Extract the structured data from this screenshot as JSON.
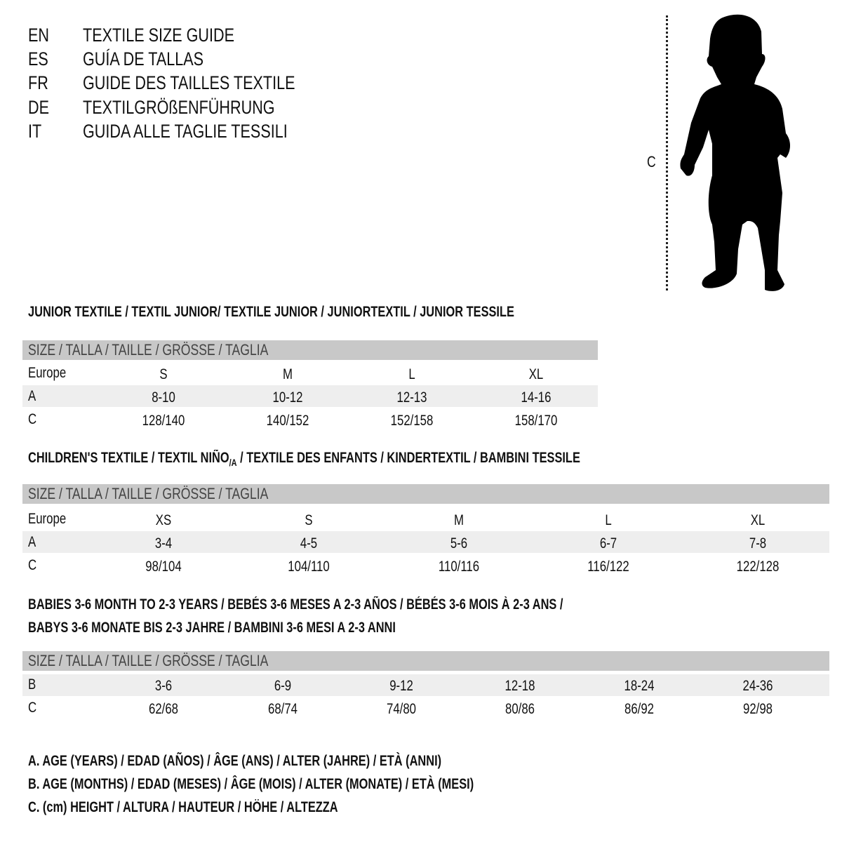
{
  "languages": [
    {
      "code": "EN",
      "title": "TEXTILE SIZE GUIDE"
    },
    {
      "code": "ES",
      "title": "GUÍA DE TALLAS"
    },
    {
      "code": "FR",
      "title": "GUIDE DES TAILLES TEXTILE"
    },
    {
      "code": "DE",
      "title": "TEXTILGRÖßENFÜHRUNG"
    },
    {
      "code": "IT",
      "title": "GUIDA ALLE TAGLIE TESSILI"
    }
  ],
  "figure": {
    "measure_label": "C",
    "icon": "child-silhouette-icon"
  },
  "junior": {
    "heading": "JUNIOR TEXTILE / TEXTIL JUNIOR/ TEXTILE JUNIOR / JUNIORTEXTIL / JUNIOR TESSILE",
    "header": "SIZE / TALLA / TAILLE / GRÖSSE / TAGLIA",
    "rows": [
      {
        "label": "Europe",
        "values": [
          "S",
          "M",
          "L",
          "XL"
        ]
      },
      {
        "label": "A",
        "values": [
          "8-10",
          "10-12",
          "12-13",
          "14-16"
        ]
      },
      {
        "label": "C",
        "values": [
          "128/140",
          "140/152",
          "152/158",
          "158/170"
        ]
      }
    ]
  },
  "children": {
    "heading": "CHILDREN'S TEXTILE / TEXTIL NIÑO",
    "heading_sub": "/A",
    "heading_rest": " / TEXTILE DES ENFANTS / KINDERTEXTIL / BAMBINI TESSILE",
    "header": "SIZE / TALLA / TAILLE / GRÖSSE / TAGLIA",
    "rows": [
      {
        "label": "Europe",
        "values": [
          "XS",
          "S",
          "M",
          "L",
          "XL"
        ]
      },
      {
        "label": "A",
        "values": [
          "3-4",
          "4-5",
          "5-6",
          "6-7",
          "7-8"
        ]
      },
      {
        "label": "C",
        "values": [
          "98/104",
          "104/110",
          "110/116",
          "116/122",
          "122/128"
        ]
      }
    ]
  },
  "babies": {
    "heading_line1": "BABIES 3-6 MONTH TO 2-3 YEARS / BEBÉS 3-6 MESES A 2-3 AÑOS / BÉBÉS 3-6 MOIS À 2-3 ANS /",
    "heading_line2": "BABYS 3-6 MONATE BIS 2-3 JAHRE / BAMBINI 3-6 MESI A 2-3 ANNI",
    "header": "SIZE / TALLA / TAILLE / GRÖSSE / TAGLIA",
    "rows": [
      {
        "label": "B",
        "values": [
          "3-6",
          "6-9",
          "9-12",
          "12-18",
          "18-24",
          "24-36"
        ]
      },
      {
        "label": "C",
        "values": [
          "62/68",
          "68/74",
          "74/80",
          "80/86",
          "86/92",
          "92/98"
        ]
      }
    ]
  },
  "legend": [
    "A. AGE (YEARS) / EDAD (AÑOS) / ÂGE (ANS) / ALTER (JAHRE) / ETÀ (ANNI)",
    "B. AGE (MONTHS) / EDAD (MESES) / ÂGE (MOIS) / ALTER (MONATE) / ETÀ (MESI)",
    "C. (cm) HEIGHT / ALTURA / HAUTEUR / HÖHE / ALTEZZA"
  ],
  "colors": {
    "header_bar": "#c8c8c8",
    "row_band": "#eeeeee"
  }
}
